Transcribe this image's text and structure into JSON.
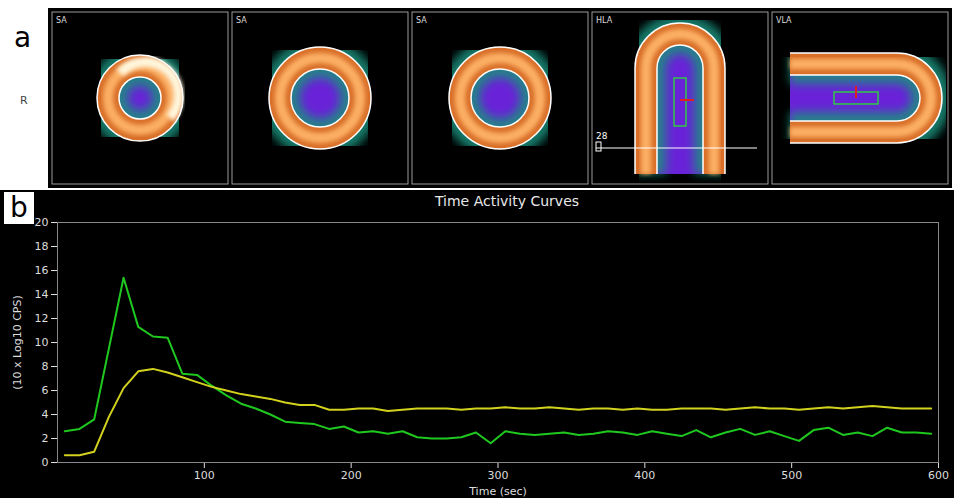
{
  "image_panel": {
    "letter": "a",
    "side_label": "R",
    "views": [
      "SA",
      "SA",
      "SA",
      "HLA",
      "VLA"
    ],
    "slider_label": "28"
  },
  "chart_data": {
    "letter": "b",
    "type": "line",
    "title": "Time Activity Curves",
    "x_label": "Time (sec)",
    "y_label": "(10 x Log10 CPS)",
    "x": [
      5,
      15,
      25,
      35,
      45,
      55,
      65,
      75,
      85,
      95,
      105,
      115,
      125,
      135,
      145,
      155,
      165,
      175,
      185,
      195,
      205,
      215,
      225,
      235,
      245,
      255,
      265,
      275,
      285,
      295,
      305,
      315,
      325,
      335,
      345,
      355,
      365,
      375,
      385,
      395,
      405,
      415,
      425,
      435,
      445,
      455,
      465,
      475,
      485,
      495,
      505,
      515,
      525,
      535,
      545,
      555,
      565,
      575,
      585,
      595
    ],
    "series": [
      {
        "color": "#1fc81f",
        "values": [
          2.6,
          2.8,
          3.6,
          9.5,
          15.4,
          11.3,
          10.5,
          10.4,
          7.4,
          7.3,
          6.4,
          5.6,
          4.9,
          4.5,
          4.0,
          3.4,
          3.3,
          3.2,
          2.8,
          3.0,
          2.5,
          2.6,
          2.4,
          2.6,
          2.1,
          2.0,
          2.0,
          2.1,
          2.5,
          1.6,
          2.6,
          2.4,
          2.3,
          2.4,
          2.5,
          2.3,
          2.4,
          2.6,
          2.5,
          2.3,
          2.6,
          2.4,
          2.2,
          2.7,
          2.1,
          2.5,
          2.8,
          2.3,
          2.6,
          2.2,
          1.8,
          2.7,
          2.9,
          2.3,
          2.5,
          2.2,
          2.9,
          2.5,
          2.5,
          2.4
        ]
      },
      {
        "color": "#d2d21e",
        "values": [
          0.6,
          0.6,
          0.9,
          3.8,
          6.2,
          7.6,
          7.8,
          7.5,
          7.1,
          6.7,
          6.3,
          6.0,
          5.7,
          5.5,
          5.3,
          5.0,
          4.8,
          4.8,
          4.4,
          4.4,
          4.5,
          4.5,
          4.3,
          4.4,
          4.5,
          4.5,
          4.5,
          4.4,
          4.5,
          4.5,
          4.6,
          4.5,
          4.5,
          4.6,
          4.5,
          4.4,
          4.5,
          4.5,
          4.4,
          4.5,
          4.4,
          4.4,
          4.5,
          4.5,
          4.5,
          4.4,
          4.5,
          4.6,
          4.5,
          4.5,
          4.4,
          4.5,
          4.6,
          4.5,
          4.6,
          4.7,
          4.6,
          4.5,
          4.5,
          4.5
        ]
      }
    ],
    "xlim": [
      0,
      600
    ],
    "xticks": [
      100,
      200,
      300,
      400,
      500,
      600
    ],
    "ylim": [
      0,
      20
    ],
    "yticks": [
      0,
      2,
      4,
      6,
      8,
      10,
      12,
      14,
      16,
      18,
      20
    ],
    "grid": false
  }
}
